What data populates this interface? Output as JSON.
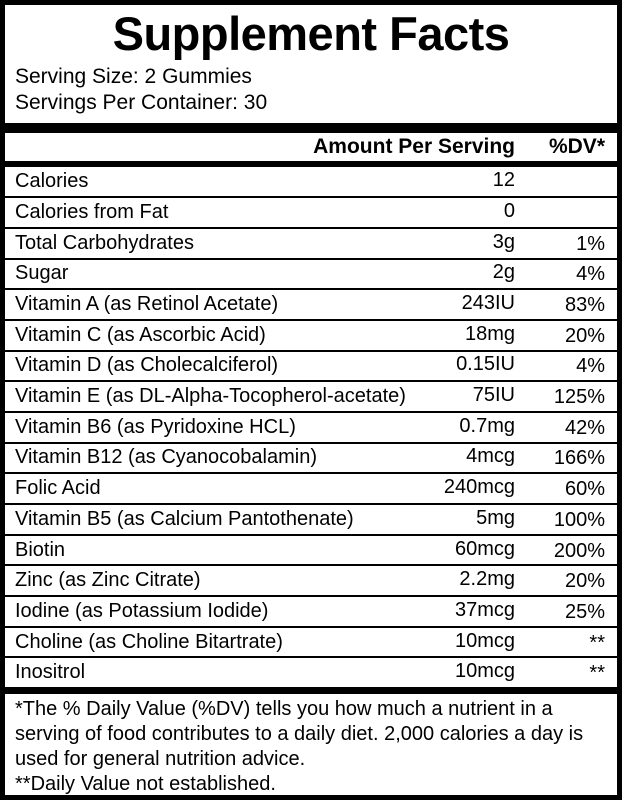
{
  "label": {
    "title": "Supplement Facts",
    "serving_size": "Serving Size: 2 Gummies",
    "servings_per_container": "Servings Per Container: 30",
    "columns": {
      "amount": "Amount Per Serving",
      "dv": "%DV*"
    },
    "rows": [
      {
        "name": "Calories",
        "amount": "12",
        "dv": ""
      },
      {
        "name": "Calories from Fat",
        "amount": "0",
        "dv": ""
      },
      {
        "name": "Total Carbohydrates",
        "amount": "3g",
        "dv": "1%"
      },
      {
        "name": "Sugar",
        "amount": "2g",
        "dv": "4%"
      },
      {
        "name": "Vitamin A (as Retinol Acetate)",
        "amount": "243IU",
        "dv": "83%"
      },
      {
        "name": "Vitamin C (as Ascorbic Acid)",
        "amount": "18mg",
        "dv": "20%"
      },
      {
        "name": "Vitamin D (as Cholecalciferol)",
        "amount": "0.15IU",
        "dv": "4%"
      },
      {
        "name": "Vitamin E (as DL-Alpha-Tocopherol-acetate)",
        "amount": "75IU",
        "dv": "125%"
      },
      {
        "name": "Vitamin B6 (as Pyridoxine HCL)",
        "amount": "0.7mg",
        "dv": "42%"
      },
      {
        "name": "Vitamin B12 (as Cyanocobalamin)",
        "amount": "4mcg",
        "dv": "166%"
      },
      {
        "name": "Folic Acid",
        "amount": "240mcg",
        "dv": "60%"
      },
      {
        "name": "Vitamin B5 (as Calcium Pantothenate)",
        "amount": "5mg",
        "dv": "100%"
      },
      {
        "name": "Biotin",
        "amount": "60mcg",
        "dv": "200%"
      },
      {
        "name": "Zinc (as Zinc Citrate)",
        "amount": "2.2mg",
        "dv": "20%"
      },
      {
        "name": "Iodine (as Potassium Iodide)",
        "amount": "37mcg",
        "dv": "25%"
      },
      {
        "name": "Choline (as Choline Bitartrate)",
        "amount": "10mcg",
        "dv": "**"
      },
      {
        "name": "Inositrol",
        "amount": "10mcg",
        "dv": "**"
      }
    ],
    "footnotes": [
      "*The % Daily Value (%DV) tells you how much a nutrient in a serving of food contributes to a daily diet. 2,000 calories a day is used for general nutrition advice.",
      "**Daily Value not established."
    ],
    "colors": {
      "text": "#000000",
      "background": "#ffffff",
      "rule": "#000000"
    }
  }
}
